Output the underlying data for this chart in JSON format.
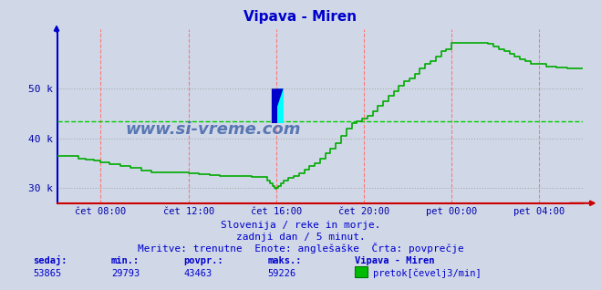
{
  "title": "Vipava - Miren",
  "title_color": "#0000cc",
  "bg_color": "#d0d8e8",
  "plot_bg_color": "#d0d8e8",
  "line_color": "#00aa00",
  "avg_line_color": "#00cc00",
  "axis_color_left": "#0000cc",
  "axis_color_bottom": "#cc0000",
  "grid_v_color": "#ff7777",
  "grid_h_color": "#aaaaaa",
  "ylabel_color": "#0000aa",
  "xlabel_color": "#0000aa",
  "watermark_color": "#4466aa",
  "subtitle1": "Slovenija / reke in morje.",
  "subtitle2": "zadnji dan / 5 minut.",
  "subtitle3": "Meritve: trenutne  Enote: anglešaške  Črta: povprečje",
  "legend_title": "Vipava - Miren",
  "legend_label": "pretok[čevelj3/min]",
  "legend_color": "#00bb00",
  "stat_sedaj": 53865,
  "stat_min": 29793,
  "stat_povpr": 43463,
  "stat_maks": 59226,
  "avg_value": 43463,
  "ylim": [
    27000,
    62000
  ],
  "yticks": [
    30000,
    40000,
    50000
  ],
  "ytick_labels": [
    "30 k",
    "40 k",
    "50 k"
  ],
  "xtick_labels": [
    "čet 08:00",
    "čet 12:00",
    "čet 16:00",
    "čet 20:00",
    "pet 00:00",
    "pet 04:00"
  ],
  "xtick_positions": [
    0.083,
    0.25,
    0.417,
    0.583,
    0.75,
    0.917
  ],
  "x_data": [
    0.0,
    0.02,
    0.04,
    0.055,
    0.07,
    0.083,
    0.1,
    0.12,
    0.14,
    0.16,
    0.18,
    0.2,
    0.22,
    0.24,
    0.25,
    0.27,
    0.29,
    0.31,
    0.33,
    0.35,
    0.37,
    0.39,
    0.4,
    0.405,
    0.41,
    0.413,
    0.415,
    0.417,
    0.42,
    0.425,
    0.43,
    0.44,
    0.45,
    0.46,
    0.47,
    0.48,
    0.49,
    0.5,
    0.51,
    0.52,
    0.53,
    0.54,
    0.55,
    0.56,
    0.57,
    0.58,
    0.583,
    0.59,
    0.6,
    0.61,
    0.62,
    0.63,
    0.64,
    0.65,
    0.66,
    0.67,
    0.68,
    0.69,
    0.7,
    0.71,
    0.72,
    0.73,
    0.74,
    0.75,
    0.76,
    0.77,
    0.78,
    0.79,
    0.8,
    0.81,
    0.82,
    0.83,
    0.84,
    0.85,
    0.86,
    0.87,
    0.88,
    0.89,
    0.9,
    0.91,
    0.917,
    0.93,
    0.95,
    0.97,
    1.0
  ],
  "y_data": [
    36500,
    36500,
    36000,
    35800,
    35500,
    35200,
    34800,
    34400,
    34000,
    33500,
    33200,
    33200,
    33200,
    33200,
    33000,
    32800,
    32600,
    32400,
    32400,
    32400,
    32200,
    32200,
    31500,
    31000,
    30500,
    30000,
    29793,
    30000,
    30500,
    31000,
    31500,
    32000,
    32500,
    33000,
    33800,
    34500,
    35000,
    36000,
    37000,
    38000,
    39000,
    40500,
    42000,
    43000,
    43500,
    44000,
    44000,
    44500,
    45500,
    46500,
    47500,
    48500,
    49500,
    50500,
    51500,
    52000,
    53000,
    54000,
    55000,
    55500,
    56500,
    57500,
    58000,
    59226,
    59226,
    59226,
    59226,
    59226,
    59226,
    59226,
    59000,
    58500,
    58000,
    57500,
    57000,
    56500,
    56000,
    55500,
    55000,
    55000,
    55000,
    54500,
    54200,
    54000,
    54000
  ]
}
